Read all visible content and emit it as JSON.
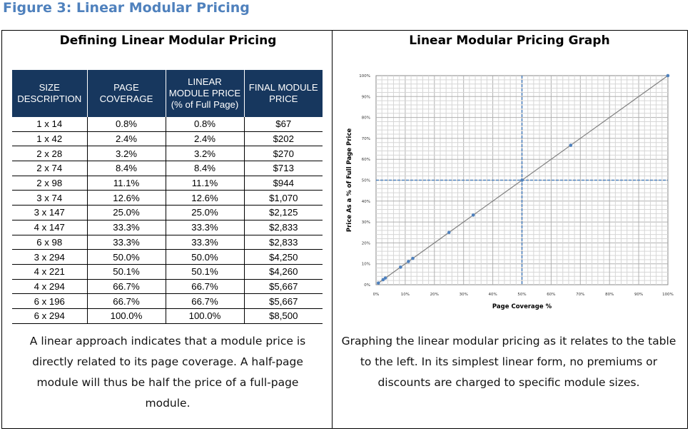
{
  "figure_title": "Figure 3: Linear Modular Pricing",
  "left_panel": {
    "title": "Defining Linear Modular Pricing",
    "table": {
      "headers": [
        "SIZE DESCRIPTION",
        "PAGE COVERAGE",
        "LINEAR MODULE PRICE (% of Full Page)",
        "FINAL MODULE PRICE"
      ],
      "rows": [
        [
          "1 x 14",
          "0.8%",
          "0.8%",
          "$67"
        ],
        [
          "1 x 42",
          "2.4%",
          "2.4%",
          "$202"
        ],
        [
          "2 x 28",
          "3.2%",
          "3.2%",
          "$270"
        ],
        [
          "2 x 74",
          "8.4%",
          "8.4%",
          "$713"
        ],
        [
          "2 x 98",
          "11.1%",
          "11.1%",
          "$944"
        ],
        [
          "3 x 74",
          "12.6%",
          "12.6%",
          "$1,070"
        ],
        [
          "3 x 147",
          "25.0%",
          "25.0%",
          "$2,125"
        ],
        [
          "4 x 147",
          "33.3%",
          "33.3%",
          "$2,833"
        ],
        [
          "6 x 98",
          "33.3%",
          "33.3%",
          "$2,833"
        ],
        [
          "3 x 294",
          "50.0%",
          "50.0%",
          "$4,250"
        ],
        [
          "4 x 221",
          "50.1%",
          "50.1%",
          "$4,260"
        ],
        [
          "4 x 294",
          "66.7%",
          "66.7%",
          "$5,667"
        ],
        [
          "6 x 196",
          "66.7%",
          "66.7%",
          "$5,667"
        ],
        [
          "6 x 294",
          "100.0%",
          "100.0%",
          "$8,500"
        ]
      ]
    },
    "caption": "A linear approach indicates that a module price is directly related to its page coverage. A half-page module will thus be half the price of a full-page module."
  },
  "right_panel": {
    "title": "Linear Modular Pricing Graph",
    "caption": "Graphing the linear modular pricing as it relates to the table to the left. In its simplest linear form, no premiums or discounts are charged to specific module sizes."
  },
  "chart_data": {
    "type": "line",
    "xlabel": "Page Coverage %",
    "ylabel": "Price As a % of Full Page Price",
    "xlim": [
      0,
      100
    ],
    "ylim": [
      0,
      100
    ],
    "xticks": [
      "0%",
      "10%",
      "20%",
      "30%",
      "40%",
      "50%",
      "60%",
      "70%",
      "80%",
      "90%",
      "100%"
    ],
    "yticks": [
      "0%",
      "10%",
      "20%",
      "30%",
      "40%",
      "50%",
      "60%",
      "70%",
      "80%",
      "90%",
      "100%"
    ],
    "grid": true,
    "series": [
      {
        "x": [
          0.8,
          2.4,
          3.2,
          8.4,
          11.1,
          12.6,
          25.0,
          33.3,
          50.0,
          66.7,
          100.0
        ],
        "y": [
          0.8,
          2.4,
          3.2,
          8.4,
          11.1,
          12.6,
          25.0,
          33.3,
          50.0,
          66.7,
          100.0
        ]
      }
    ],
    "reference_lines": {
      "x": 50,
      "y": 50
    },
    "colors": {
      "line": "#7f7f7f",
      "marker": "#4f81bd",
      "reference": "#4f81bd",
      "grid": "#c8c8c8"
    }
  }
}
